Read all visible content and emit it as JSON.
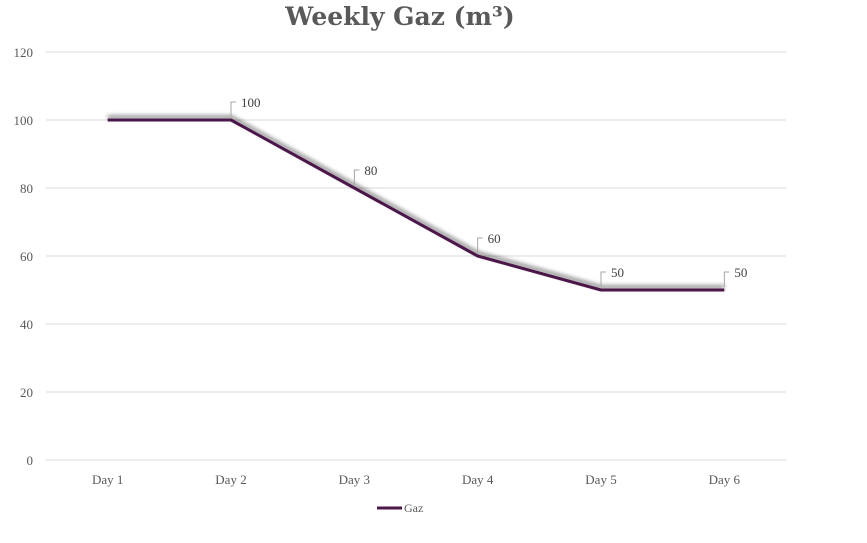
{
  "chart_data": {
    "type": "line",
    "title": "Weekly Gaz (m³)",
    "categories": [
      "Day 1",
      "Day 2",
      "Day 3",
      "Day 4",
      "Day 5",
      "Day 6"
    ],
    "series": [
      {
        "name": "Gaz",
        "values": [
          100,
          100,
          80,
          60,
          50,
          50
        ],
        "color": "#4b1848"
      }
    ],
    "data_labels": [
      null,
      "100",
      "80",
      "60",
      "50",
      "50"
    ],
    "y_ticks": [
      "0",
      "20",
      "40",
      "60",
      "80",
      "100",
      "120"
    ],
    "ylim": [
      0,
      120
    ],
    "grid": true,
    "legend_position": "bottom",
    "colors": {
      "gridline": "#d9d9d9",
      "tick_text": "#595959"
    }
  }
}
